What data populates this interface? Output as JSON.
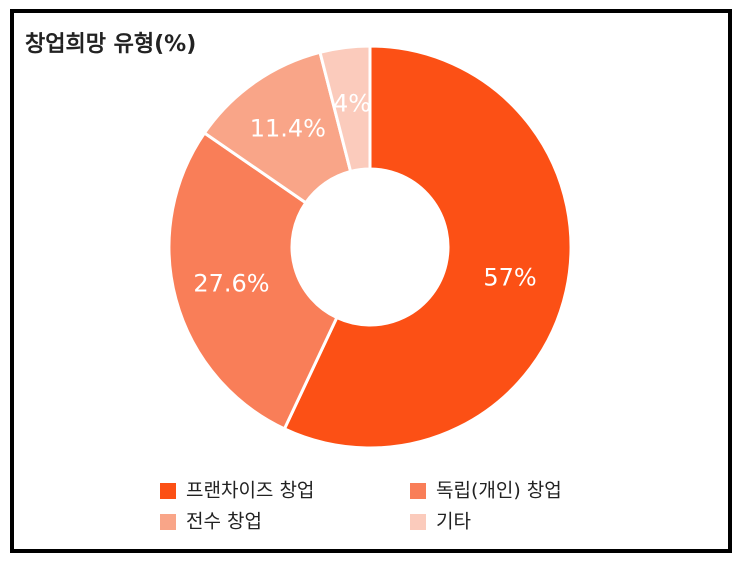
{
  "chart_data": {
    "type": "pie",
    "title": "창업희망 유형(%)",
    "categories": [
      "프랜차이즈 창업",
      "독립(개인) 창업",
      "전수 창업",
      "기타"
    ],
    "values": [
      57,
      27.6,
      11.4,
      4
    ],
    "value_labels": [
      "57%",
      "27.6%",
      "11.4%",
      "4%"
    ],
    "colors": [
      "#fc5015",
      "#f97e58",
      "#f9a588",
      "#fbcbbc"
    ]
  }
}
